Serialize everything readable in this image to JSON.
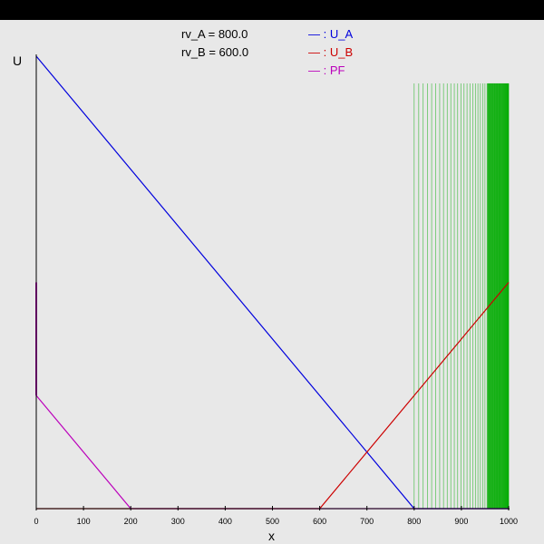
{
  "chart_data": {
    "type": "line",
    "xlabel": "x",
    "ylabel": "U",
    "xlim": [
      0,
      1000
    ],
    "x_ticks": [
      "0",
      "100",
      "200",
      "300",
      "400",
      "500",
      "600",
      "700",
      "800",
      "900",
      "1000"
    ],
    "params": [
      {
        "label": "rv_A = 800.0"
      },
      {
        "label": "rv_B = 600.0"
      }
    ],
    "legend": [
      {
        "symbol": "—",
        "label": " : U_A",
        "color": "#0000dd"
      },
      {
        "symbol": "—",
        "label": " : U_B",
        "color": "#cc0000"
      },
      {
        "symbol": "—",
        "label": " : PF",
        "color": "#bb00bb"
      }
    ],
    "series": [
      {
        "name": "U_A",
        "color": "#0000dd",
        "x": [
          0,
          800,
          1000
        ],
        "y": [
          1.0,
          0.0,
          0.0
        ]
      },
      {
        "name": "U_B",
        "color": "#cc0000",
        "x": [
          0,
          600,
          1000
        ],
        "y": [
          0.0,
          0.0,
          0.5
        ]
      },
      {
        "name": "PF",
        "color": "#bb00bb",
        "x": [
          0,
          200,
          1000
        ],
        "y": [
          0.25,
          0.0,
          0.0
        ]
      },
      {
        "name": "PF_segment",
        "color": "#bb00bb",
        "x": [
          0,
          0
        ],
        "y": [
          0.25,
          0.5
        ]
      }
    ],
    "vertical_lines": {
      "color": "#00aa00",
      "x_start": 800,
      "x_end": 1000,
      "count": 45,
      "y_top": 0.94
    }
  }
}
